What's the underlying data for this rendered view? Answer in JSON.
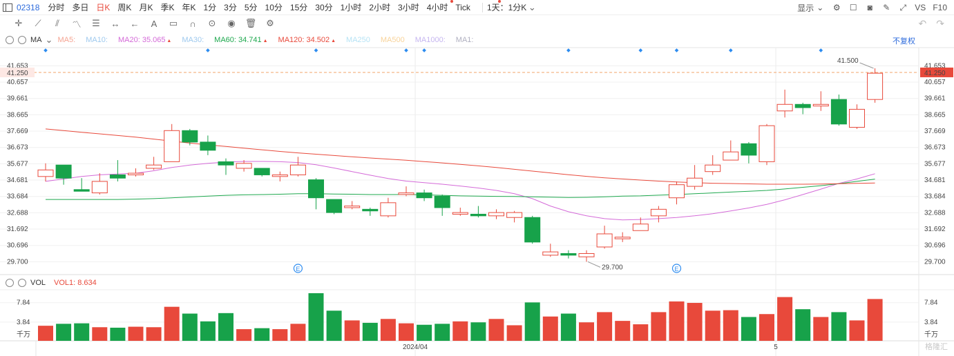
{
  "toolbar": {
    "symbol": "02318",
    "periods": [
      "分时",
      "多日",
      "日K",
      "周K",
      "月K",
      "季K",
      "年K",
      "1分",
      "3分",
      "5分",
      "10分",
      "15分",
      "30分",
      "1小时",
      "2小时",
      "3小时",
      "4小时",
      "Tick",
      "1天：1分K"
    ],
    "active_period": "日K",
    "display_label": "显示",
    "right_labels": [
      "VS",
      "F10"
    ]
  },
  "legend": {
    "indicator": "MA",
    "ma5": "MA5:",
    "ma10": "MA10:",
    "ma20": "MA20: 35.065",
    "ma30": "MA30:",
    "ma60": "MA60: 34.741",
    "ma120": "MA120: 34.502",
    "ma250": "MA250",
    "ma500": "MA500",
    "ma1000": "MA1000:",
    "ma1": "MA1:",
    "adjust": "不复权",
    "colors": {
      "ma5": "#f5a493",
      "ma10": "#9ec9ee",
      "ma20": "#d46ad8",
      "ma30": "#9ec9ee",
      "ma60": "#1ea84e",
      "ma120": "#e8493b",
      "ma250": "#b6e3f5",
      "ma500": "#f8d39a",
      "ma1000": "#c6b6f0",
      "ma1": "#b0b0c0"
    }
  },
  "vol_legend": {
    "indicator": "VOL",
    "vol1": "VOL1: 8.634"
  },
  "chart_data": {
    "type": "candlestick",
    "ylim": [
      29.0,
      42.3
    ],
    "y_ticks": [
      "41.653",
      "40.657",
      "39.661",
      "38.665",
      "37.669",
      "36.673",
      "35.677",
      "34.681",
      "33.684",
      "32.688",
      "31.692",
      "30.696",
      "29.700"
    ],
    "current_price": "41.250",
    "max_label": "41.500",
    "min_label": "29.700",
    "x_labels": [
      {
        "index": 21,
        "label": "2024/04"
      },
      {
        "index": 41,
        "label": "5"
      }
    ],
    "candles": [
      {
        "o": 34.9,
        "c": 35.3,
        "h": 35.7,
        "l": 34.6
      },
      {
        "o": 35.6,
        "c": 34.8,
        "h": 35.6,
        "l": 34.4
      },
      {
        "o": 34.1,
        "c": 34.0,
        "h": 34.8,
        "l": 34.0
      },
      {
        "o": 33.9,
        "c": 34.6,
        "h": 35.1,
        "l": 33.8
      },
      {
        "o": 35.0,
        "c": 34.8,
        "h": 35.9,
        "l": 34.6
      },
      {
        "o": 35.0,
        "c": 35.1,
        "h": 35.4,
        "l": 34.9
      },
      {
        "o": 35.4,
        "c": 35.6,
        "h": 36.1,
        "l": 35.3
      },
      {
        "o": 35.8,
        "c": 37.7,
        "h": 38.1,
        "l": 35.8
      },
      {
        "o": 37.7,
        "c": 37.0,
        "h": 37.8,
        "l": 36.8
      },
      {
        "o": 37.0,
        "c": 36.5,
        "h": 37.4,
        "l": 36.2
      },
      {
        "o": 35.8,
        "c": 35.6,
        "h": 36.0,
        "l": 35.0
      },
      {
        "o": 35.4,
        "c": 35.7,
        "h": 35.9,
        "l": 35.2
      },
      {
        "o": 35.4,
        "c": 35.0,
        "h": 35.4,
        "l": 34.9
      },
      {
        "o": 34.9,
        "c": 35.0,
        "h": 35.2,
        "l": 34.6
      },
      {
        "o": 35.0,
        "c": 35.6,
        "h": 36.1,
        "l": 34.9
      },
      {
        "o": 34.7,
        "c": 33.6,
        "h": 34.8,
        "l": 32.9
      },
      {
        "o": 33.5,
        "c": 32.7,
        "h": 33.5,
        "l": 32.6
      },
      {
        "o": 33.0,
        "c": 33.1,
        "h": 33.4,
        "l": 32.9
      },
      {
        "o": 32.9,
        "c": 32.8,
        "h": 33.0,
        "l": 32.5
      },
      {
        "o": 32.5,
        "c": 33.3,
        "h": 33.6,
        "l": 32.4
      },
      {
        "o": 33.8,
        "c": 33.9,
        "h": 34.3,
        "l": 33.7
      },
      {
        "o": 33.9,
        "c": 33.6,
        "h": 34.1,
        "l": 33.4
      },
      {
        "o": 33.7,
        "c": 33.0,
        "h": 33.8,
        "l": 32.5
      },
      {
        "o": 32.6,
        "c": 32.7,
        "h": 33.0,
        "l": 32.5
      },
      {
        "o": 32.6,
        "c": 32.5,
        "h": 33.1,
        "l": 32.4
      },
      {
        "o": 32.5,
        "c": 32.7,
        "h": 32.9,
        "l": 32.3
      },
      {
        "o": 32.4,
        "c": 32.7,
        "h": 32.8,
        "l": 32.1
      },
      {
        "o": 32.4,
        "c": 30.9,
        "h": 32.5,
        "l": 30.8
      },
      {
        "o": 30.1,
        "c": 30.3,
        "h": 30.8,
        "l": 30.0
      },
      {
        "o": 30.2,
        "c": 30.1,
        "h": 30.4,
        "l": 29.9
      },
      {
        "o": 30.0,
        "c": 30.2,
        "h": 30.4,
        "l": 29.7
      },
      {
        "o": 30.6,
        "c": 31.4,
        "h": 31.9,
        "l": 30.5
      },
      {
        "o": 31.1,
        "c": 31.2,
        "h": 31.5,
        "l": 30.9
      },
      {
        "o": 31.6,
        "c": 32.0,
        "h": 32.4,
        "l": 31.6
      },
      {
        "o": 32.5,
        "c": 32.9,
        "h": 33.1,
        "l": 32.1
      },
      {
        "o": 33.6,
        "c": 34.4,
        "h": 34.6,
        "l": 33.2
      },
      {
        "o": 34.3,
        "c": 34.8,
        "h": 35.6,
        "l": 34.1
      },
      {
        "o": 35.2,
        "c": 35.6,
        "h": 36.2,
        "l": 35.0
      },
      {
        "o": 35.9,
        "c": 36.4,
        "h": 37.1,
        "l": 35.9
      },
      {
        "o": 36.9,
        "c": 36.2,
        "h": 37.0,
        "l": 35.7
      },
      {
        "o": 35.8,
        "c": 38.0,
        "h": 38.1,
        "l": 35.6
      },
      {
        "o": 38.9,
        "c": 39.3,
        "h": 40.2,
        "l": 38.5
      },
      {
        "o": 39.3,
        "c": 39.1,
        "h": 39.4,
        "l": 38.7
      },
      {
        "o": 39.2,
        "c": 39.3,
        "h": 40.1,
        "l": 38.9
      },
      {
        "o": 39.6,
        "c": 38.1,
        "h": 39.9,
        "l": 38.0
      },
      {
        "o": 37.9,
        "c": 39.0,
        "h": 39.3,
        "l": 37.8
      },
      {
        "o": 39.6,
        "c": 41.2,
        "h": 41.5,
        "l": 39.4
      }
    ],
    "series": [
      {
        "name": "MA20",
        "color": "#d46ad8",
        "values": [
          34.6,
          34.75,
          34.9,
          35.0,
          35.05,
          35.1,
          35.25,
          35.45,
          35.6,
          35.7,
          35.78,
          35.82,
          35.82,
          35.8,
          35.75,
          35.62,
          35.42,
          35.2,
          34.98,
          34.78,
          34.62,
          34.52,
          34.43,
          34.32,
          34.2,
          34.05,
          33.85,
          33.55,
          33.1,
          32.75,
          32.5,
          32.33,
          32.25,
          32.28,
          32.33,
          32.4,
          32.5,
          32.63,
          32.8,
          32.98,
          33.2,
          33.48,
          33.8,
          34.13,
          34.48,
          34.75,
          35.07
        ]
      },
      {
        "name": "MA60",
        "color": "#1ea84e",
        "values": [
          33.5,
          33.5,
          33.5,
          33.5,
          33.5,
          33.52,
          33.55,
          33.6,
          33.65,
          33.7,
          33.75,
          33.78,
          33.8,
          33.82,
          33.85,
          33.85,
          33.83,
          33.82,
          33.8,
          33.8,
          33.8,
          33.78,
          33.75,
          33.72,
          33.7,
          33.69,
          33.68,
          33.66,
          33.64,
          33.62,
          33.63,
          33.66,
          33.7,
          33.72,
          33.76,
          33.8,
          33.85,
          33.9,
          33.95,
          34.0,
          34.05,
          34.14,
          34.24,
          34.34,
          34.46,
          34.6,
          34.74
        ]
      },
      {
        "name": "MA120",
        "color": "#e8493b",
        "values": [
          37.8,
          37.7,
          37.6,
          37.5,
          37.4,
          37.3,
          37.18,
          37.06,
          36.94,
          36.83,
          36.73,
          36.63,
          36.53,
          36.43,
          36.34,
          36.26,
          36.18,
          36.1,
          36.03,
          35.96,
          35.89,
          35.81,
          35.73,
          35.64,
          35.55,
          35.45,
          35.34,
          35.23,
          35.12,
          35.01,
          34.91,
          34.82,
          34.75,
          34.68,
          34.62,
          34.57,
          34.52,
          34.49,
          34.47,
          34.45,
          34.43,
          34.43,
          34.43,
          34.44,
          34.46,
          34.48,
          34.5
        ]
      }
    ],
    "volume": {
      "ylim": [
        0,
        10.5
      ],
      "y_ticks": [
        "7.84",
        "3.84"
      ],
      "unit": "千万",
      "values": [
        3.1,
        3.5,
        3.6,
        2.8,
        2.7,
        2.9,
        2.8,
        7.0,
        5.6,
        4.0,
        5.7,
        2.4,
        2.6,
        2.4,
        3.5,
        9.8,
        6.2,
        4.2,
        3.7,
        4.5,
        3.6,
        3.3,
        3.5,
        4.0,
        3.8,
        4.5,
        3.2,
        7.9,
        5.0,
        5.6,
        3.8,
        5.9,
        4.1,
        3.4,
        5.9,
        8.1,
        7.8,
        6.2,
        6.3,
        4.9,
        5.5,
        9.0,
        6.5,
        4.9,
        5.9,
        4.2,
        8.6
      ],
      "up": [
        true,
        false,
        false,
        true,
        false,
        true,
        true,
        true,
        false,
        false,
        false,
        true,
        false,
        true,
        true,
        false,
        false,
        true,
        false,
        true,
        true,
        false,
        false,
        true,
        false,
        true,
        true,
        false,
        true,
        false,
        true,
        true,
        true,
        true,
        true,
        true,
        true,
        true,
        true,
        false,
        true,
        true,
        false,
        true,
        false,
        true,
        true
      ]
    }
  }
}
